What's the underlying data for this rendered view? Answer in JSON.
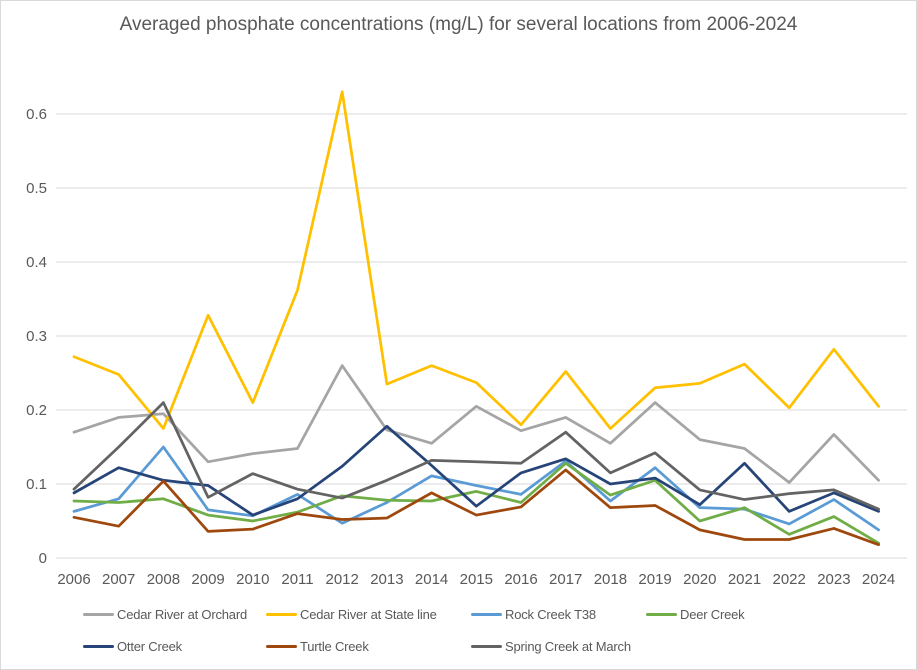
{
  "colors": {
    "gridline": "#D9D9D9",
    "text": "#595959",
    "background": "#FFFFFF"
  },
  "chart_data": {
    "type": "line",
    "title": "Averaged phosphate concentrations (mg/L) for several locations from 2006-2024",
    "xlabel": "",
    "ylabel": "",
    "ylim": [
      0,
      0.65
    ],
    "yticks": [
      0,
      0.1,
      0.2,
      0.3,
      0.4,
      0.5,
      0.6
    ],
    "grid": true,
    "legend_position": "bottom",
    "categories": [
      "2006",
      "2007",
      "2008",
      "2009",
      "2010",
      "2011",
      "2012",
      "2013",
      "2014",
      "2015",
      "2016",
      "2017",
      "2018",
      "2019",
      "2020",
      "2021",
      "2022",
      "2023",
      "2024"
    ],
    "series": [
      {
        "name": "Cedar River at Orchard",
        "color": "#A5A5A5",
        "values": [
          0.17,
          0.19,
          0.195,
          0.13,
          0.141,
          0.148,
          0.26,
          0.173,
          0.155,
          0.205,
          0.172,
          0.19,
          0.155,
          0.21,
          0.16,
          0.148,
          0.102,
          0.167,
          0.105
        ]
      },
      {
        "name": "Cedar River at State line",
        "color": "#FFC000",
        "values": [
          0.272,
          0.248,
          0.175,
          0.328,
          0.21,
          0.362,
          0.63,
          0.235,
          0.26,
          0.237,
          0.18,
          0.252,
          0.175,
          0.23,
          0.236,
          0.262,
          0.203,
          0.282,
          0.205
        ]
      },
      {
        "name": "Rock Creek T38",
        "color": "#5B9BD5",
        "values": [
          0.063,
          0.08,
          0.15,
          0.065,
          0.057,
          0.086,
          0.047,
          0.075,
          0.111,
          0.098,
          0.086,
          0.131,
          0.077,
          0.122,
          0.068,
          0.066,
          0.046,
          0.079,
          0.038
        ]
      },
      {
        "name": "Deer Creek",
        "color": "#70AD47",
        "values": [
          0.077,
          0.075,
          0.08,
          0.058,
          0.05,
          0.062,
          0.084,
          0.078,
          0.077,
          0.09,
          0.075,
          0.128,
          0.085,
          0.105,
          0.05,
          0.068,
          0.032,
          0.056,
          0.02
        ]
      },
      {
        "name": "Otter Creek",
        "color": "#264478",
        "values": [
          0.088,
          0.122,
          0.105,
          0.098,
          0.058,
          0.08,
          0.124,
          0.178,
          0.125,
          0.07,
          0.115,
          0.134,
          0.1,
          0.108,
          0.072,
          0.128,
          0.063,
          0.088,
          0.063
        ]
      },
      {
        "name": "Turtle Creek",
        "color": "#9E480E",
        "values": [
          0.055,
          0.043,
          0.104,
          0.036,
          0.039,
          0.06,
          0.052,
          0.054,
          0.088,
          0.058,
          0.069,
          0.119,
          0.068,
          0.071,
          0.038,
          0.025,
          0.025,
          0.04,
          0.018
        ]
      },
      {
        "name": "Spring Creek at March",
        "color": "#636363",
        "values": [
          0.093,
          0.15,
          0.21,
          0.082,
          0.114,
          0.093,
          0.081,
          0.105,
          0.132,
          0.13,
          0.128,
          0.17,
          0.115,
          0.142,
          0.092,
          0.079,
          0.087,
          0.092,
          0.066
        ]
      }
    ]
  }
}
